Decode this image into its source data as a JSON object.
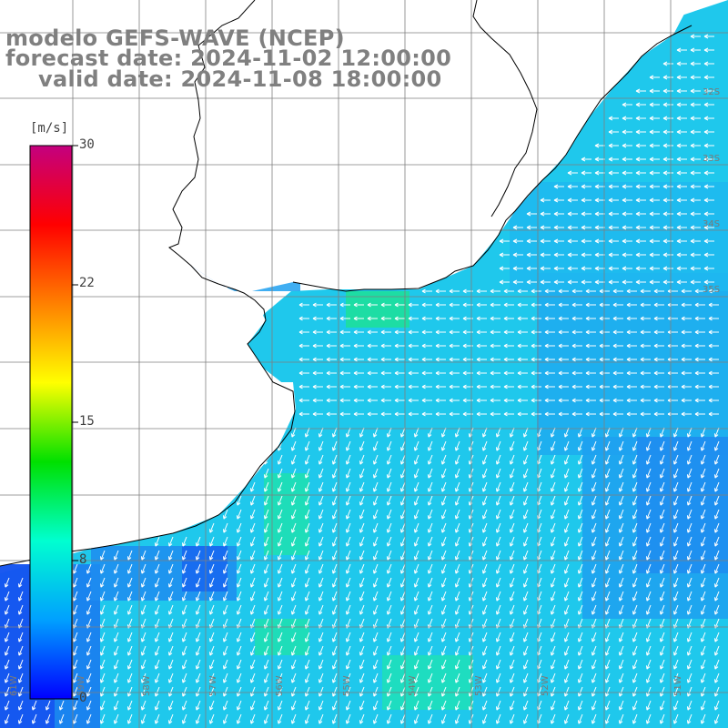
{
  "map": {
    "title_lines": [
      "modelo GEFS-WAVE (NCEP)",
      "forecast date: 2024-11-02 12:00:00",
      "valid date: 2024-11-08 18:00:00"
    ],
    "variable": "wind speed",
    "colorbar": {
      "unit_label": "[m/s]",
      "tick_labels": [
        "30",
        "22",
        "15",
        "8",
        "0"
      ],
      "colors": [
        "#c4007f",
        "#ff0000",
        "#ff8000",
        "#ffff00",
        "#00e000",
        "#00ffd0",
        "#00a0ff",
        "#0000ff"
      ]
    },
    "lat_labels": [
      "32S",
      "33S",
      "34S",
      "35S"
    ],
    "lon_labels": [
      "61W",
      "59W",
      "58W",
      "57W",
      "56W",
      "55W",
      "54W",
      "53W",
      "52W",
      "51W"
    ],
    "land_color": "#ffffff",
    "grid_color": "#7f7f7f",
    "arrow_color": "#ffffff"
  }
}
